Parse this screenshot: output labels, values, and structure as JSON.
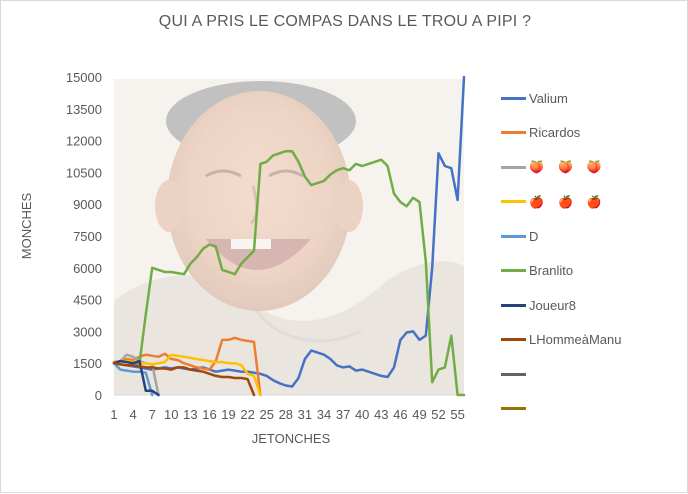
{
  "chart_data": {
    "type": "line",
    "title": "QUI A PRIS LE COMPAS DANS LE TROU A PIPI ?",
    "xlabel": "JETONCHES",
    "ylabel": "MONCHES",
    "ylim": [
      0,
      15000
    ],
    "yticks": [
      0,
      1500,
      3000,
      4500,
      6000,
      7500,
      9000,
      10500,
      12000,
      13500,
      15000
    ],
    "xticks": [
      1,
      4,
      7,
      10,
      13,
      16,
      19,
      22,
      25,
      28,
      31,
      34,
      37,
      40,
      43,
      46,
      49,
      52,
      55
    ],
    "xlim": [
      1,
      56
    ],
    "grid": false,
    "legend_position": "right",
    "background_image": "laughing-man-photo",
    "series": [
      {
        "name": "Valium",
        "color": "#4472c4",
        "x": [
          1,
          2,
          3,
          4,
          5,
          6,
          7,
          8,
          9,
          10,
          11,
          12,
          13,
          14,
          15,
          16,
          17,
          18,
          19,
          20,
          21,
          22,
          23,
          24,
          25,
          26,
          27,
          28,
          29,
          30,
          31,
          32,
          33,
          34,
          35,
          36,
          37,
          38,
          39,
          40,
          41,
          42,
          43,
          44,
          45,
          46,
          47,
          48,
          49,
          50,
          51,
          52,
          53,
          54,
          55,
          56
        ],
        "y": [
          1500,
          1450,
          1400,
          1350,
          1300,
          1250,
          1200,
          1250,
          1300,
          1250,
          1300,
          1250,
          1200,
          1250,
          1300,
          1200,
          1100,
          1150,
          1200,
          1150,
          1100,
          1100,
          1050,
          1000,
          900,
          700,
          550,
          450,
          400,
          800,
          1700,
          2100,
          2000,
          1900,
          1700,
          1400,
          1300,
          1350,
          1150,
          1200,
          1100,
          1000,
          900,
          850,
          1300,
          2600,
          2950,
          3000,
          2600,
          2800,
          6000,
          11400,
          10800,
          10700,
          9200,
          15000
        ]
      },
      {
        "name": "Ricardos",
        "color": "#ed7d31",
        "x": [
          1,
          2,
          3,
          4,
          5,
          6,
          7,
          8,
          9,
          10,
          11,
          12,
          13,
          14,
          15,
          16,
          17,
          18,
          19,
          20,
          21,
          22,
          23,
          24
        ],
        "y": [
          1550,
          1600,
          1700,
          1650,
          1800,
          1900,
          1850,
          1800,
          1950,
          1700,
          1650,
          1500,
          1400,
          1300,
          1250,
          1200,
          1600,
          2600,
          2600,
          2700,
          2600,
          2550,
          2500,
          0
        ]
      },
      {
        "name": "",
        "color": "#a5a5a5",
        "icon": "peach-icon",
        "x": [
          1,
          2,
          3,
          4,
          5,
          6,
          7,
          8
        ],
        "y": [
          1500,
          1600,
          1900,
          1800,
          1600,
          1500,
          1450,
          0
        ]
      },
      {
        "name": "",
        "color": "#ffc000",
        "icon": "apple-icon",
        "x": [
          1,
          2,
          3,
          4,
          5,
          6,
          7,
          8,
          9,
          10,
          11,
          12,
          13,
          14,
          15,
          16,
          17,
          18,
          19,
          20,
          21,
          22,
          23,
          24
        ],
        "y": [
          1500,
          1550,
          1600,
          1550,
          1500,
          1500,
          1450,
          1500,
          1550,
          1900,
          1850,
          1800,
          1750,
          1700,
          1650,
          1600,
          1550,
          1550,
          1500,
          1500,
          1400,
          1000,
          900,
          0
        ]
      },
      {
        "name": "D",
        "color": "#5b9bd5",
        "x": [
          1,
          2,
          3,
          4,
          5,
          6,
          7
        ],
        "y": [
          1500,
          1200,
          1150,
          1100,
          1100,
          1050,
          0
        ]
      },
      {
        "name": "Branlito",
        "color": "#70ad47",
        "x": [
          1,
          2,
          3,
          4,
          5,
          6,
          7,
          8,
          9,
          10,
          11,
          12,
          13,
          14,
          15,
          16,
          17,
          18,
          19,
          20,
          21,
          22,
          23,
          24,
          25,
          26,
          27,
          28,
          29,
          30,
          31,
          32,
          33,
          34,
          35,
          36,
          37,
          38,
          39,
          40,
          41,
          42,
          43,
          44,
          45,
          46,
          47,
          48,
          49,
          50,
          51,
          52,
          53,
          54,
          55,
          56
        ],
        "y": [
          1500,
          1450,
          1400,
          1450,
          1500,
          3800,
          6000,
          5900,
          5800,
          5800,
          5750,
          5700,
          6200,
          6500,
          6900,
          7100,
          7000,
          5900,
          5800,
          5700,
          6200,
          6500,
          6800,
          10900,
          11000,
          11300,
          11400,
          11500,
          11500,
          11000,
          10300,
          9900,
          10000,
          10100,
          10400,
          10600,
          10700,
          10600,
          10900,
          10800,
          10900,
          11000,
          11100,
          10800,
          9500,
          9100,
          8900,
          9300,
          9100,
          6300,
          600,
          1200,
          1300,
          2800,
          0,
          0
        ]
      },
      {
        "name": "Joueur8",
        "color": "#264478",
        "x": [
          1,
          2,
          3,
          4,
          5,
          6,
          7,
          8
        ],
        "y": [
          1500,
          1600,
          1550,
          1500,
          1600,
          200,
          200,
          0
        ]
      },
      {
        "name": "LHommeàManu",
        "color": "#9e480e",
        "x": [
          1,
          2,
          3,
          4,
          5,
          6,
          7,
          8,
          9,
          10,
          11,
          12,
          13,
          14,
          15,
          16,
          17,
          18,
          19,
          20,
          21,
          22,
          23
        ],
        "y": [
          1500,
          1450,
          1400,
          1400,
          1350,
          1300,
          1300,
          1250,
          1250,
          1200,
          1300,
          1300,
          1200,
          1150,
          1100,
          1000,
          900,
          850,
          850,
          800,
          800,
          750,
          0
        ]
      },
      {
        "name": "",
        "color": "#636363",
        "x": [],
        "y": []
      },
      {
        "name": "",
        "color": "#997300",
        "x": [],
        "y": []
      }
    ]
  }
}
